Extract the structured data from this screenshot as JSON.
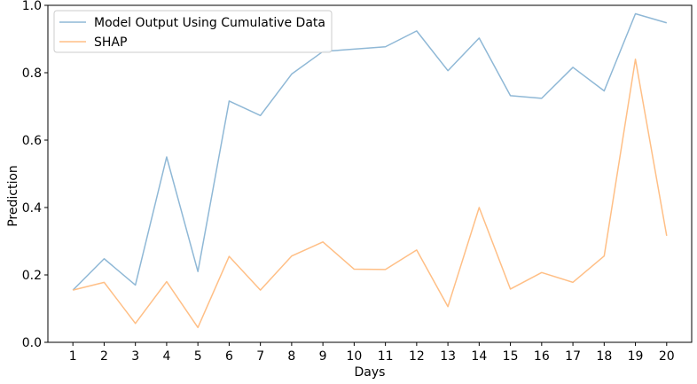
{
  "chart_data": {
    "type": "line",
    "xlabel": "Days",
    "ylabel": "Prediction",
    "x": [
      1,
      2,
      3,
      4,
      5,
      6,
      7,
      8,
      9,
      10,
      11,
      12,
      13,
      14,
      15,
      16,
      17,
      18,
      19,
      20
    ],
    "xlim": [
      0.2,
      20.8
    ],
    "ylim": [
      0.0,
      1.0
    ],
    "yticks": [
      "0.0",
      "0.2",
      "0.4",
      "0.6",
      "0.8",
      "1.0"
    ],
    "grid": false,
    "legend_position": "top-left",
    "series": [
      {
        "name": "Model Output Using Cumulative Data",
        "color": "#8fb8d6",
        "values": [
          0.155,
          0.248,
          0.17,
          0.55,
          0.21,
          0.716,
          0.673,
          0.796,
          0.863,
          0.87,
          0.877,
          0.924,
          0.806,
          0.903,
          0.732,
          0.724,
          0.816,
          0.746,
          0.975,
          0.948
        ]
      },
      {
        "name": "SHAP",
        "color": "#ffbf86",
        "values": [
          0.155,
          0.178,
          0.056,
          0.18,
          0.044,
          0.255,
          0.155,
          0.256,
          0.298,
          0.217,
          0.216,
          0.274,
          0.106,
          0.4,
          0.158,
          0.207,
          0.178,
          0.256,
          0.84,
          0.316
        ]
      }
    ]
  }
}
